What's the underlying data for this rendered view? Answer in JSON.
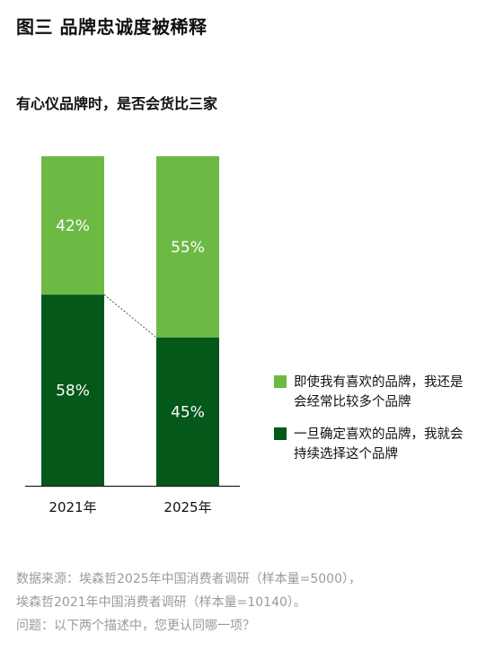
{
  "figure": {
    "title": "图三  品牌忠诚度被稀释",
    "subtitle": "有心仪品牌时，是否会货比三家"
  },
  "colors": {
    "light_green": "#6cb944",
    "dark_green": "#03581a",
    "connector": "#2a6a2a",
    "axis": "#222222"
  },
  "chart_data": {
    "type": "bar",
    "stacked": true,
    "categories": [
      "2021年",
      "2025年"
    ],
    "series": [
      {
        "name": "一旦确定喜欢的品牌，我就会持续选择这个品牌",
        "values": [
          58,
          45
        ],
        "labels": [
          "58%",
          "45%"
        ],
        "color": "#03581a"
      },
      {
        "name": "即使我有喜欢的品牌，我还是会经常比较多个品牌",
        "values": [
          42,
          55
        ],
        "labels": [
          "42%",
          "55%"
        ],
        "color": "#6cb944"
      }
    ],
    "ylim": [
      0,
      100
    ]
  },
  "legend": {
    "items": [
      {
        "label": "即使我有喜欢的品牌，我还是会经常比较多个品牌",
        "color": "#6cb944"
      },
      {
        "label": "一旦确定喜欢的品牌，我就会持续选择这个品牌",
        "color": "#03581a"
      }
    ]
  },
  "footer": {
    "line1": "数据来源：埃森哲2025年中国消费者调研（样本量=5000），",
    "line2": "埃森哲2021年中国消费者调研（样本量=10140）。",
    "line3": "问题：以下两个描述中，您更认同哪一项？"
  }
}
